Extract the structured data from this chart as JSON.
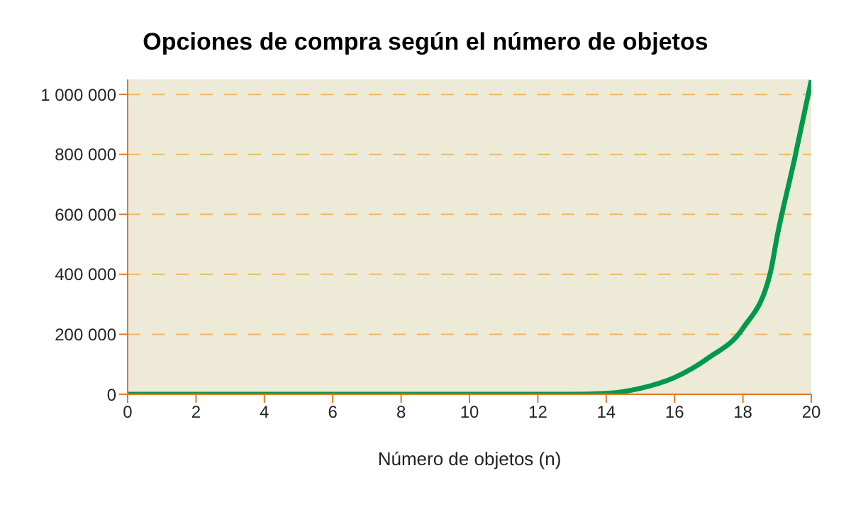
{
  "chart_data": {
    "type": "line",
    "title": "Opciones de compra según el número de objetos",
    "xlabel": "Número de objetos (n)",
    "x": [
      0,
      2,
      4,
      6,
      8,
      10,
      12,
      13,
      14,
      15,
      16,
      17,
      18,
      18.8,
      19,
      19.5,
      20
    ],
    "series": [
      {
        "color": "#00994c",
        "values": [
          0,
          0,
          0,
          0,
          0,
          0,
          0,
          0,
          3000,
          20000,
          56000,
          122000,
          220000,
          404000,
          526000,
          779000,
          1047000
        ]
      }
    ],
    "xlim": [
      0,
      20
    ],
    "xticks": [
      0,
      2,
      4,
      6,
      8,
      10,
      12,
      14,
      16,
      18,
      20
    ],
    "ylim": [
      0,
      1050000
    ],
    "yticks": [
      {
        "value": 0,
        "label": "0"
      },
      {
        "value": 200000,
        "label": "200 000"
      },
      {
        "value": 400000,
        "label": "400 000"
      },
      {
        "value": 600000,
        "label": "600 000"
      },
      {
        "value": 800000,
        "label": "800 000"
      },
      {
        "value": 1000000,
        "label": "1 000 000"
      }
    ],
    "grid": "y",
    "marker": "none",
    "line_style": "solid"
  }
}
